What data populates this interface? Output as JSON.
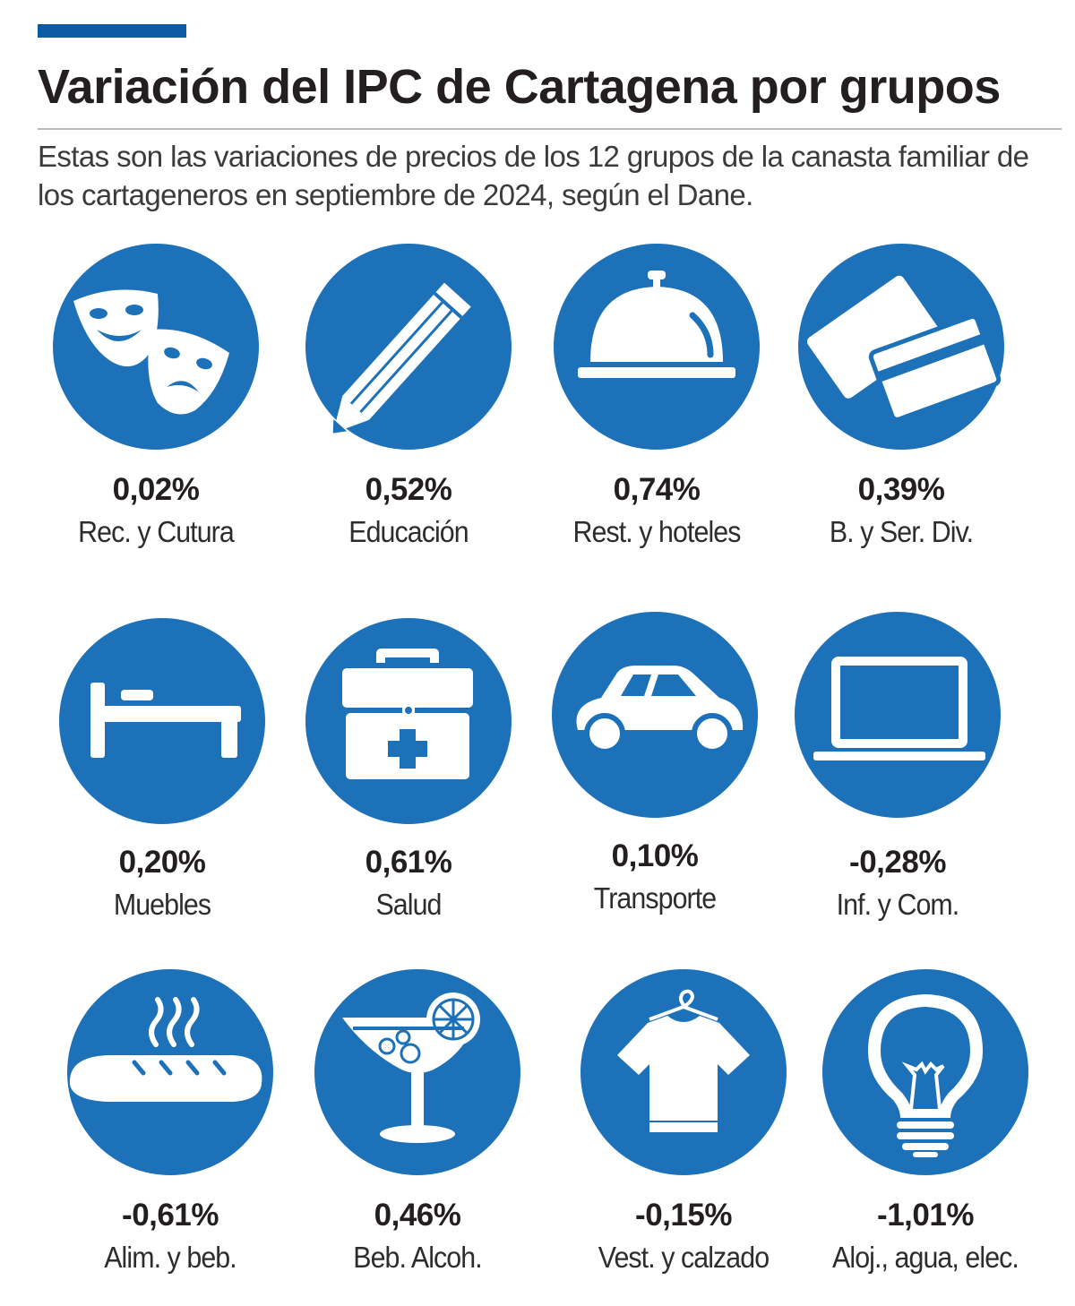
{
  "title": "Variación del IPC de Cartagena por grupos",
  "subtitle": "Estas son las variaciones de precios de los 12 grupos de la canasta familiar de los cartageneros en septiembre de 2024, según el Dane.",
  "colors": {
    "accent": "#0a5aa6",
    "circle": "#1d71b8",
    "text": "#231f20"
  },
  "chart_data": {
    "type": "table",
    "unit": "%",
    "categories": [
      "Rec. y Cutura",
      "Educación",
      "Rest. y hoteles",
      "B. y Ser. Div.",
      "Muebles",
      "Salud",
      "Transporte",
      "Inf. y Com.",
      "Alim. y beb.",
      "Beb. Alcoh.",
      "Vest. y calzado",
      "Aloj., agua, elec."
    ],
    "values": [
      0.02,
      0.52,
      0.74,
      0.39,
      0.2,
      0.61,
      0.1,
      -0.28,
      -0.61,
      0.46,
      -0.15,
      -1.01
    ]
  },
  "items": [
    {
      "icon": "theater-masks-icon",
      "value": "0,02%",
      "label": "Rec. y Cutura"
    },
    {
      "icon": "pencil-icon",
      "value": "0,52%",
      "label": "Educación"
    },
    {
      "icon": "cloche-icon",
      "value": "0,74%",
      "label": "Rest. y hoteles"
    },
    {
      "icon": "cards-icon",
      "value": "0,39%",
      "label": "B. y Ser. Div."
    },
    {
      "icon": "bed-icon",
      "value": "0,20%",
      "label": "Muebles"
    },
    {
      "icon": "first-aid-kit-icon",
      "value": "0,61%",
      "label": "Salud"
    },
    {
      "icon": "car-icon",
      "value": "0,10%",
      "label": "Transporte"
    },
    {
      "icon": "laptop-icon",
      "value": "-0,28%",
      "label": "Inf. y Com."
    },
    {
      "icon": "bread-icon",
      "value": "-0,61%",
      "label": "Alim. y beb."
    },
    {
      "icon": "cocktail-icon",
      "value": "0,46%",
      "label": "Beb. Alcoh."
    },
    {
      "icon": "tshirt-icon",
      "value": "-0,15%",
      "label": "Vest. y calzado"
    },
    {
      "icon": "lightbulb-icon",
      "value": "-1,01%",
      "label": "Aloj., agua, elec."
    }
  ]
}
